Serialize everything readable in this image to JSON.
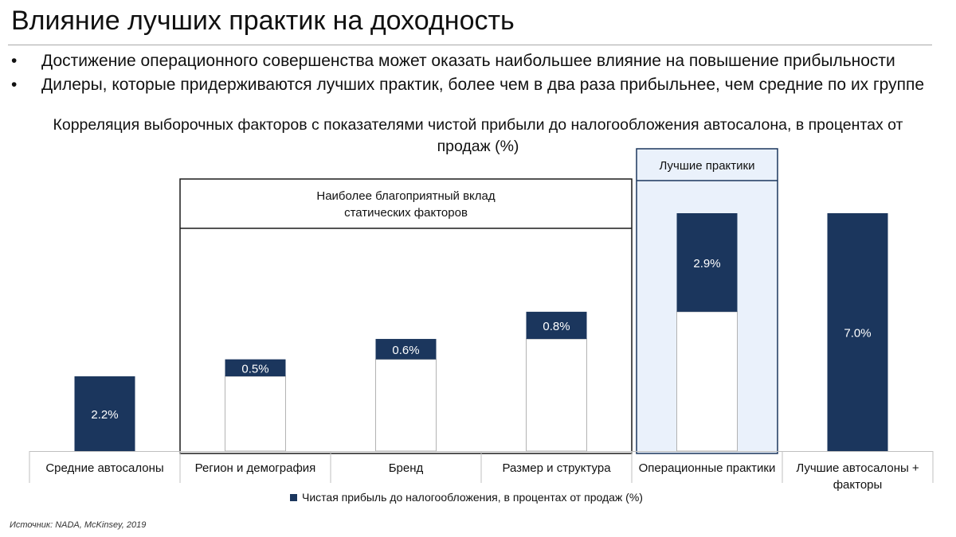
{
  "page": {
    "title": "Влияние лучших практик на доходность",
    "bullets": [
      "Достижение операционного совершенства может оказать наибольшее влияние на повышение прибыльности",
      "Дилеры, которые придерживаются лучших практик, более чем в два раза прибыльнее, чем средние по их группе"
    ],
    "bullet_symbol": "•",
    "source": "Источник: NADA, McKinsey, 2019"
  },
  "chart_data": {
    "type": "bar",
    "subtype": "waterfall",
    "title_lines": [
      "Корреляция выборочных факторов с показателями чистой прибыли до налогообложения автосалона, в процентах от",
      "продаж (%)"
    ],
    "categories": [
      "Средние автосалоны",
      "Регион и демография",
      "Бренд",
      "Размер и структура",
      "Операционные практики",
      "Лучшие автосалоны + факторы"
    ],
    "series": [
      {
        "name": "Чистая прибыль до налогообложения, в процентах от продаж (%)",
        "values": [
          2.2,
          0.5,
          0.6,
          0.8,
          2.9,
          7.0
        ],
        "data_labels": [
          "2.2%",
          "0.5%",
          "0.6%",
          "0.8%",
          "2.9%",
          "7.0%"
        ],
        "bar_kind": [
          "total",
          "increment",
          "increment",
          "increment",
          "increment",
          "total"
        ]
      }
    ],
    "groups": [
      {
        "label_lines": [
          "Наиболее благоприятный вклад",
          "статических факторов"
        ],
        "from": 1,
        "to": 3
      },
      {
        "label_lines": [
          "Лучшие практики"
        ],
        "from": 4,
        "to": 4,
        "highlight": true
      }
    ],
    "ylim": [
      0,
      7.6
    ],
    "grid": false,
    "legend": "bottom-center",
    "colors": {
      "bar": "#1b365d",
      "base_fill": "#ffffff",
      "base_stroke": "#b3b3b3",
      "group_border": "#1a1a1a",
      "highlight_fill": "#eaf1fb",
      "highlight_border": "#1b365d",
      "axis": "#bfbfbf",
      "label_on_bar": "#ffffff"
    }
  }
}
